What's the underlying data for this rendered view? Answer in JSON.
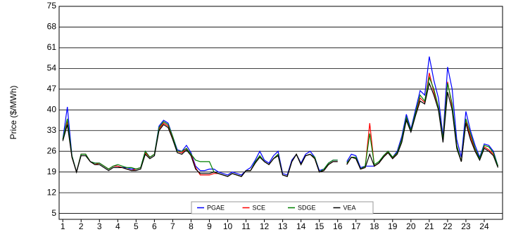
{
  "chart_data": {
    "type": "line",
    "y_label": "Price ($/MWh)",
    "x": [
      1,
      1.25,
      1.5,
      1.75,
      2,
      2.25,
      2.5,
      2.75,
      3,
      3.25,
      3.5,
      3.75,
      4,
      4.25,
      4.5,
      4.75,
      5,
      5.25,
      5.5,
      5.75,
      6,
      6.25,
      6.5,
      6.75,
      7,
      7.25,
      7.5,
      7.75,
      8,
      8.25,
      8.5,
      8.75,
      9,
      9.25,
      9.5,
      9.75,
      10,
      10.25,
      10.5,
      10.75,
      11,
      11.25,
      11.5,
      11.75,
      12,
      12.25,
      12.5,
      12.75,
      13,
      13.25,
      13.5,
      13.75,
      14,
      14.25,
      14.5,
      14.75,
      15,
      15.25,
      15.5,
      15.75,
      16,
      16.25,
      16.5,
      16.75,
      17,
      17.25,
      17.5,
      17.75,
      18,
      18.25,
      18.5,
      18.75,
      19,
      19.25,
      19.5,
      19.75,
      20,
      20.25,
      20.5,
      20.75,
      21,
      21.25,
      21.5,
      21.75,
      22,
      22.25,
      22.5,
      22.75,
      23,
      23.25,
      23.5,
      23.75,
      24,
      24.25,
      24.5,
      24.75
    ],
    "series": [
      {
        "name": "PGAE",
        "color": "#0000ff",
        "values": [
          30,
          41,
          24.5,
          19,
          25,
          25,
          22.5,
          22,
          22,
          21,
          20,
          21,
          21,
          20.5,
          20.5,
          20,
          20,
          20.5,
          26,
          24,
          25,
          34.5,
          36.5,
          35.5,
          31,
          26.5,
          26,
          28,
          25.5,
          21,
          19.5,
          19.5,
          20,
          20,
          19,
          18.5,
          18,
          19,
          18.5,
          18,
          19.5,
          20.5,
          23,
          26,
          23,
          22,
          24.5,
          26,
          18.5,
          18,
          23,
          25,
          22,
          25,
          26,
          24,
          19.5,
          20,
          22,
          23,
          23,
          null,
          22.5,
          25,
          24.5,
          20.5,
          21,
          21,
          21,
          22,
          24.5,
          26,
          24,
          26,
          31,
          38.5,
          33.5,
          40,
          46.5,
          45,
          58,
          50,
          44,
          31,
          54.5,
          47,
          30,
          24,
          39.5,
          33,
          28,
          24,
          28.5,
          28,
          26,
          21
        ]
      },
      {
        "name": "SCE",
        "color": "#ff0000",
        "values": [
          30,
          36,
          24,
          19,
          25,
          25,
          22.5,
          21.5,
          22,
          21,
          20,
          21,
          21,
          20.5,
          20,
          19.5,
          20,
          20.5,
          25.5,
          24,
          25,
          33.5,
          35.5,
          34.5,
          30.5,
          26,
          25.5,
          27,
          25,
          20.5,
          18,
          18,
          18,
          18.5,
          18.5,
          18,
          17.5,
          18.5,
          18,
          17.5,
          19.5,
          19.5,
          22,
          24.5,
          22.5,
          21.5,
          23.5,
          25,
          18,
          17.5,
          22.5,
          25,
          21.5,
          24.5,
          25,
          23.5,
          19,
          19.5,
          21.5,
          22.5,
          22.5,
          null,
          21.5,
          24,
          23.5,
          20,
          20.5,
          35.5,
          21,
          22,
          24,
          26,
          23.5,
          25.5,
          30,
          37,
          33,
          38.5,
          44,
          42.5,
          52.5,
          46,
          41,
          30,
          49.5,
          41,
          28,
          22.5,
          36,
          31,
          26.5,
          23.5,
          27.5,
          26.5,
          25,
          21
        ]
      },
      {
        "name": "SDGE",
        "color": "#008000",
        "values": [
          30,
          37,
          24.5,
          19,
          25,
          25,
          22.5,
          22,
          22,
          21,
          20,
          21,
          21.5,
          21,
          20.5,
          20.5,
          20,
          20.5,
          26,
          24,
          25,
          34,
          36,
          35,
          31,
          26,
          26,
          27,
          25,
          23,
          22.5,
          22.5,
          22.5,
          19,
          18.5,
          18,
          17.5,
          18.5,
          18,
          17.5,
          19.5,
          19.5,
          22.5,
          24.5,
          22.5,
          21.5,
          23.5,
          25,
          18,
          17.5,
          22.5,
          25,
          21.5,
          24.5,
          25,
          24,
          19,
          20,
          22,
          23,
          23,
          null,
          22,
          24,
          24,
          20,
          21,
          32,
          21.5,
          22.5,
          24.5,
          26,
          24,
          25.5,
          30,
          37.5,
          33,
          39,
          45,
          43,
          51,
          47,
          41,
          30,
          49,
          42,
          28,
          22.5,
          37,
          32,
          27,
          23.5,
          28,
          27.5,
          25.5,
          21
        ]
      },
      {
        "name": "VEA",
        "color": "#000000",
        "values": [
          29.5,
          35,
          24,
          19,
          24.5,
          24.5,
          22.5,
          21.5,
          21.5,
          20.5,
          19.5,
          20.5,
          20.5,
          20.5,
          20,
          19.5,
          19.5,
          20,
          25,
          23.5,
          24.5,
          33,
          35,
          34,
          30,
          25.5,
          25,
          26.5,
          24.5,
          20,
          18.5,
          18.5,
          18.5,
          19,
          18.5,
          18,
          17.5,
          18.5,
          18,
          17.5,
          19.5,
          19.5,
          22,
          24,
          22.5,
          21.5,
          23.5,
          24.5,
          18,
          17.5,
          22.5,
          25,
          21.5,
          24.5,
          25,
          23.5,
          19,
          19.5,
          21.5,
          22.5,
          22.5,
          null,
          21.5,
          24,
          23.5,
          20,
          20.5,
          25,
          21,
          22,
          24,
          25.5,
          23.5,
          25,
          29,
          36.5,
          32.5,
          38,
          43,
          42,
          49,
          45,
          40,
          29,
          46,
          40,
          27,
          22.5,
          35.5,
          30,
          26,
          23,
          27,
          26,
          24.5,
          20.5
        ]
      }
    ],
    "xlim": [
      0.8,
      25
    ],
    "xticks": [
      1,
      2,
      3,
      4,
      5,
      6,
      7,
      8,
      9,
      10,
      11,
      12,
      13,
      14,
      15,
      16,
      17,
      18,
      19,
      20,
      21,
      22,
      23,
      24
    ],
    "ylim": [
      3,
      75
    ],
    "yticks": [
      5,
      12,
      19,
      26,
      33,
      40,
      47,
      54,
      61,
      68,
      75
    ],
    "grid": true,
    "legend": "bottom"
  }
}
